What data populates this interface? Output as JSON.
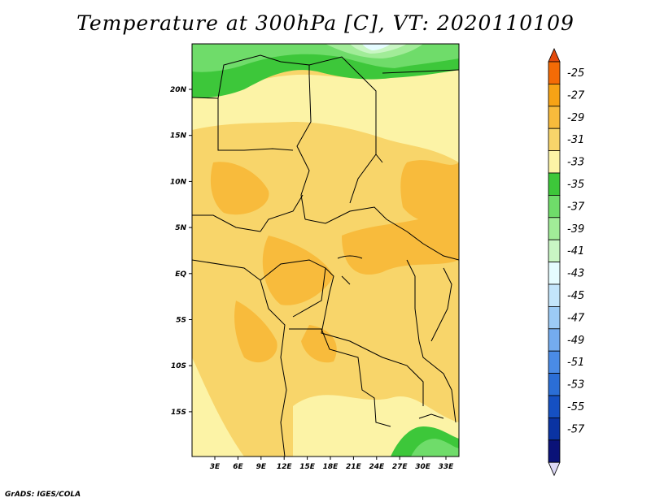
{
  "title": "Temperature at 300hPa [C], VT: 2020110109",
  "credit": "GrADS: IGES/COLA",
  "map": {
    "lon_labels": [
      "3E",
      "6E",
      "9E",
      "12E",
      "15E",
      "18E",
      "21E",
      "24E",
      "27E",
      "30E",
      "33E"
    ],
    "lat_labels": [
      "20N",
      "15N",
      "10N",
      "5N",
      "EQ",
      "5S",
      "10S",
      "15S"
    ]
  },
  "colorbar": {
    "labels": [
      "-25",
      "-27",
      "-29",
      "-31",
      "-33",
      "-35",
      "-37",
      "-39",
      "-41",
      "-43",
      "-45",
      "-47",
      "-49",
      "-51",
      "-53",
      "-55",
      "-57"
    ],
    "colors": [
      "#e34a0c",
      "#f46b06",
      "#f7a315",
      "#f8bb3c",
      "#f8d56a",
      "#fcf3a6",
      "#3dc73a",
      "#6fdc6a",
      "#a1ec98",
      "#c9f6c4",
      "#e5fcff",
      "#c3e5fb",
      "#9ccbf6",
      "#74acef",
      "#4a8be6",
      "#2b6ed6",
      "#1550c2",
      "#0a33a2",
      "#0a1278",
      "#dcd8f5"
    ]
  },
  "chart_data": {
    "type": "heatmap",
    "variable": "Temperature at 300hPa",
    "units": "C",
    "valid_time": "2020110109",
    "regions": [
      {
        "area": "northern edge around 22-24N",
        "value_range": [
          -41,
          -37
        ]
      },
      {
        "area": "northern Sahara 17-22N",
        "value_range": [
          -35,
          -33
        ]
      },
      {
        "area": "Sahel / central band",
        "value_range": [
          -33,
          -31
        ]
      },
      {
        "area": "Cameroon, Gulf of Guinea, Angola coast",
        "value_range": [
          -31,
          -29
        ]
      },
      {
        "area": "southern Africa coast",
        "value_range": [
          -35,
          -33
        ]
      },
      {
        "area": "southeast corner (Mozambique)",
        "value_range": [
          -39,
          -37
        ]
      }
    ]
  }
}
